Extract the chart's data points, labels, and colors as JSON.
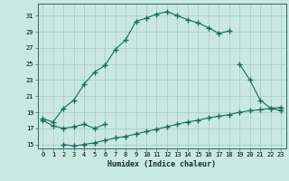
{
  "xlabel": "Humidex (Indice chaleur)",
  "background_color": "#c8e8e0",
  "grid_color": "#a8c8c0",
  "line_color": "#1a6b5a",
  "ylim": [
    14.5,
    32.5
  ],
  "xlim": [
    -0.5,
    23.5
  ],
  "yticks": [
    15,
    17,
    19,
    21,
    23,
    25,
    27,
    29,
    31
  ],
  "xticks": [
    0,
    1,
    2,
    3,
    4,
    5,
    6,
    7,
    8,
    9,
    10,
    11,
    12,
    13,
    14,
    15,
    16,
    17,
    18,
    19,
    20,
    21,
    22,
    23
  ],
  "line1_x": [
    0,
    1,
    2,
    3,
    4,
    5,
    6,
    7,
    8,
    9,
    10,
    11,
    12,
    13,
    14,
    15,
    16,
    17,
    18
  ],
  "line1_y": [
    18.2,
    17.8,
    19.5,
    20.5,
    22.5,
    24.0,
    24.8,
    26.8,
    28.0,
    30.3,
    30.7,
    31.2,
    31.5,
    31.0,
    30.5,
    30.1,
    29.5,
    28.8,
    29.1
  ],
  "line2_x": [
    0,
    1,
    2,
    3,
    4,
    5,
    6,
    19,
    20,
    21,
    22,
    23
  ],
  "line2_y": [
    18.0,
    17.3,
    17.0,
    17.2,
    17.5,
    17.0,
    17.5,
    25.0,
    23.0,
    20.5,
    19.5,
    19.2
  ],
  "line3_x": [
    2,
    3,
    4,
    5,
    6,
    7,
    8,
    9,
    10,
    11,
    12,
    13,
    14,
    15,
    16,
    17,
    18,
    19,
    20,
    21,
    22,
    23
  ],
  "line3_y": [
    15.0,
    14.8,
    15.0,
    15.2,
    15.5,
    15.8,
    16.0,
    16.3,
    16.6,
    16.9,
    17.2,
    17.5,
    17.8,
    18.0,
    18.3,
    18.5,
    18.7,
    19.0,
    19.2,
    19.3,
    19.5,
    19.6
  ]
}
